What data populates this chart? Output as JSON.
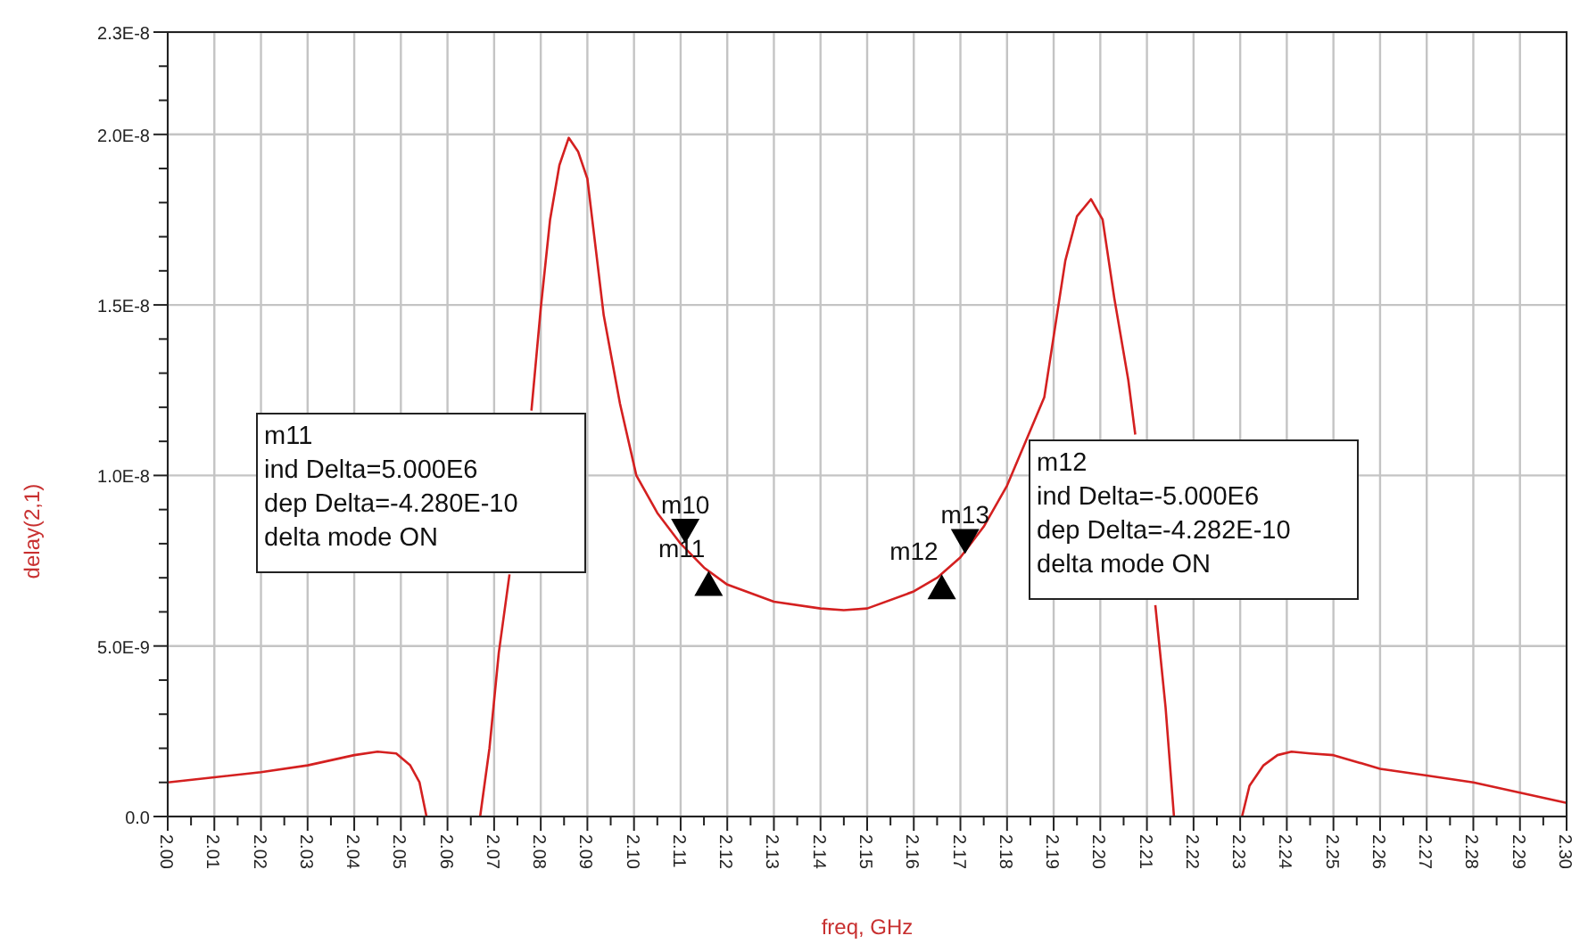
{
  "chart_data": {
    "type": "line",
    "xlabel": "freq, GHz",
    "ylabel": "delay(2,1)",
    "xlim": [
      2.0,
      2.3
    ],
    "ylim": [
      0,
      2.3e-08
    ],
    "xticks": [
      {
        "value": 2.0,
        "label": "2.00"
      },
      {
        "value": 2.01,
        "label": "2.01"
      },
      {
        "value": 2.02,
        "label": "2.02"
      },
      {
        "value": 2.03,
        "label": "2.03"
      },
      {
        "value": 2.04,
        "label": "2.04"
      },
      {
        "value": 2.05,
        "label": "2.05"
      },
      {
        "value": 2.06,
        "label": "2.06"
      },
      {
        "value": 2.07,
        "label": "2.07"
      },
      {
        "value": 2.08,
        "label": "2.08"
      },
      {
        "value": 2.09,
        "label": "2.09"
      },
      {
        "value": 2.1,
        "label": "2.10"
      },
      {
        "value": 2.11,
        "label": "2.11"
      },
      {
        "value": 2.12,
        "label": "2.12"
      },
      {
        "value": 2.13,
        "label": "2.13"
      },
      {
        "value": 2.14,
        "label": "2.14"
      },
      {
        "value": 2.15,
        "label": "2.15"
      },
      {
        "value": 2.16,
        "label": "2.16"
      },
      {
        "value": 2.17,
        "label": "2.17"
      },
      {
        "value": 2.18,
        "label": "2.18"
      },
      {
        "value": 2.19,
        "label": "2.19"
      },
      {
        "value": 2.2,
        "label": "2.20"
      },
      {
        "value": 2.21,
        "label": "2.21"
      },
      {
        "value": 2.22,
        "label": "2.22"
      },
      {
        "value": 2.23,
        "label": "2.23"
      },
      {
        "value": 2.24,
        "label": "2.24"
      },
      {
        "value": 2.25,
        "label": "2.25"
      },
      {
        "value": 2.26,
        "label": "2.26"
      },
      {
        "value": 2.27,
        "label": "2.27"
      },
      {
        "value": 2.28,
        "label": "2.28"
      },
      {
        "value": 2.29,
        "label": "2.29"
      },
      {
        "value": 2.3,
        "label": "2.30"
      },
      {
        "value": 2.005,
        "label": null
      },
      {
        "value": 2.015,
        "label": null
      },
      {
        "value": 2.025,
        "label": null
      },
      {
        "value": 2.035,
        "label": null
      },
      {
        "value": 2.045,
        "label": null
      },
      {
        "value": 2.055,
        "label": null
      },
      {
        "value": 2.065,
        "label": null
      },
      {
        "value": 2.075,
        "label": null
      },
      {
        "value": 2.085,
        "label": null
      },
      {
        "value": 2.095,
        "label": null
      },
      {
        "value": 2.105,
        "label": null
      },
      {
        "value": 2.115,
        "label": null
      },
      {
        "value": 2.125,
        "label": null
      },
      {
        "value": 2.135,
        "label": null
      },
      {
        "value": 2.145,
        "label": null
      },
      {
        "value": 2.155,
        "label": null
      },
      {
        "value": 2.165,
        "label": null
      },
      {
        "value": 2.175,
        "label": null
      },
      {
        "value": 2.185,
        "label": null
      },
      {
        "value": 2.195,
        "label": null
      },
      {
        "value": 2.205,
        "label": null
      },
      {
        "value": 2.215,
        "label": null
      },
      {
        "value": 2.225,
        "label": null
      },
      {
        "value": 2.235,
        "label": null
      },
      {
        "value": 2.245,
        "label": null
      },
      {
        "value": 2.255,
        "label": null
      },
      {
        "value": 2.265,
        "label": null
      },
      {
        "value": 2.275,
        "label": null
      },
      {
        "value": 2.285,
        "label": null
      },
      {
        "value": 2.295,
        "label": null
      }
    ],
    "yticks": [
      {
        "value": 0,
        "label": "0.0"
      },
      {
        "value": 5e-09,
        "label": "5.0E-9"
      },
      {
        "value": 1e-08,
        "label": "1.0E-8"
      },
      {
        "value": 1.5e-08,
        "label": "1.5E-8"
      },
      {
        "value": 2e-08,
        "label": "2.0E-8"
      },
      {
        "value": 2.3e-08,
        "label": "2.3E-8"
      },
      {
        "value": 1e-09,
        "label": null
      },
      {
        "value": 2e-09,
        "label": null
      },
      {
        "value": 3e-09,
        "label": null
      },
      {
        "value": 4e-09,
        "label": null
      },
      {
        "value": 6e-09,
        "label": null
      },
      {
        "value": 7e-09,
        "label": null
      },
      {
        "value": 8e-09,
        "label": null
      },
      {
        "value": 9e-09,
        "label": null
      },
      {
        "value": 1.1e-08,
        "label": null
      },
      {
        "value": 1.2e-08,
        "label": null
      },
      {
        "value": 1.3e-08,
        "label": null
      },
      {
        "value": 1.4e-08,
        "label": null
      },
      {
        "value": 1.6e-08,
        "label": null
      },
      {
        "value": 1.7e-08,
        "label": null
      },
      {
        "value": 1.8e-08,
        "label": null
      },
      {
        "value": 1.9e-08,
        "label": null
      },
      {
        "value": 2.1e-08,
        "label": null
      },
      {
        "value": 2.2e-08,
        "label": null
      }
    ],
    "grid": true,
    "marker": "none",
    "line_style": "solid",
    "series": [
      {
        "color": "#d42020",
        "x": [
          2.0,
          2.01,
          2.02,
          2.03,
          2.04,
          2.045,
          2.049,
          2.052,
          2.054,
          2.0555,
          2.061,
          2.067,
          2.069,
          2.071,
          2.0733,
          2.0755,
          2.078,
          2.08,
          2.082,
          2.084,
          2.086,
          2.088,
          2.09,
          2.0935,
          2.097,
          2.1005,
          2.105,
          2.11,
          2.115,
          2.12,
          2.13,
          2.14,
          2.145,
          2.15,
          2.16,
          2.165,
          2.17,
          2.175,
          2.18,
          2.184,
          2.188,
          2.1925,
          2.195,
          2.198,
          2.2005,
          2.203,
          2.206,
          2.2075,
          2.209,
          2.2118,
          2.214,
          2.2158,
          2.223,
          2.2304,
          2.232,
          2.235,
          2.238,
          2.241,
          2.245,
          2.25,
          2.26,
          2.27,
          2.28,
          2.29,
          2.3
        ],
        "values": [
          1e-09,
          1.15e-09,
          1.3e-09,
          1.5e-09,
          1.8e-09,
          1.9e-09,
          1.85e-09,
          1.5e-09,
          1e-09,
          0,
          null,
          0,
          2e-09,
          4.8e-09,
          7.1e-09,
          null,
          1.19e-08,
          1.49e-08,
          1.75e-08,
          1.91e-08,
          1.99e-08,
          1.95e-08,
          1.87e-08,
          1.47e-08,
          1.21e-08,
          1e-08,
          8.9e-09,
          8e-09,
          7.3e-09,
          6.8e-09,
          6.3e-09,
          6.1e-09,
          6.05e-09,
          6.1e-09,
          6.6e-09,
          7e-09,
          7.6e-09,
          8.5e-09,
          9.7e-09,
          1.1e-08,
          1.23e-08,
          1.63e-08,
          1.76e-08,
          1.81e-08,
          1.75e-08,
          1.52e-08,
          1.28e-08,
          1.12e-08,
          null,
          6.2e-09,
          3.2e-09,
          0,
          null,
          0,
          9e-10,
          1.5e-09,
          1.8e-09,
          1.9e-09,
          1.85e-09,
          1.8e-09,
          1.4e-09,
          1.2e-09,
          1e-09,
          7e-10,
          4e-10
        ]
      }
    ],
    "annotations": [
      "m11\nind Delta=5.000E6\ndep Delta=-4.280E-10\ndelta mode ON",
      "m12\nind Delta=-5.000E6\ndep Delta=-4.282E-10\ndelta mode ON",
      {
        "text": "m10",
        "x": 2.111,
        "y": 8e-09
      },
      {
        "text": "m11",
        "x": 2.116,
        "y": 7.2e-09
      },
      {
        "text": "m12",
        "x": 2.166,
        "y": 7.1e-09
      },
      {
        "text": "m13",
        "x": 2.171,
        "y": 7.7e-09
      }
    ]
  }
}
